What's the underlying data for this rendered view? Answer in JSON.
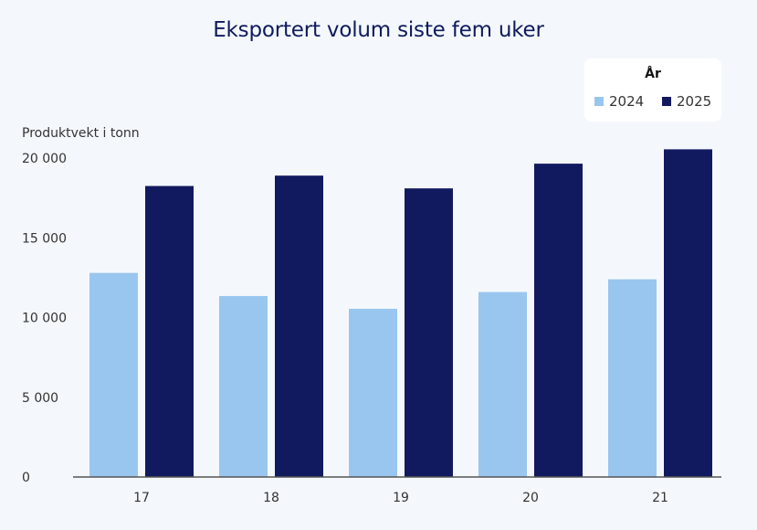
{
  "chart_data": {
    "type": "bar",
    "title": "Eksportert volum siste fem uker",
    "ylabel": "Produktvekt i tonn",
    "xlabel": "",
    "categories": [
      "17",
      "18",
      "19",
      "20",
      "21"
    ],
    "series": [
      {
        "name": "2024",
        "color": "#99c6ee",
        "values": [
          12800,
          11350,
          10550,
          11600,
          12400
        ]
      },
      {
        "name": "2025",
        "color": "#111a5e",
        "values": [
          18250,
          18900,
          18100,
          19650,
          20550
        ]
      }
    ],
    "ylim": [
      0,
      20000
    ],
    "yticks": [
      0,
      5000,
      10000,
      15000,
      20000
    ],
    "ytick_labels": [
      "0",
      "5 000",
      "10 000",
      "15 000",
      "20 000"
    ],
    "grid": false,
    "legend_title": "År",
    "legend_placement": "top-right"
  }
}
